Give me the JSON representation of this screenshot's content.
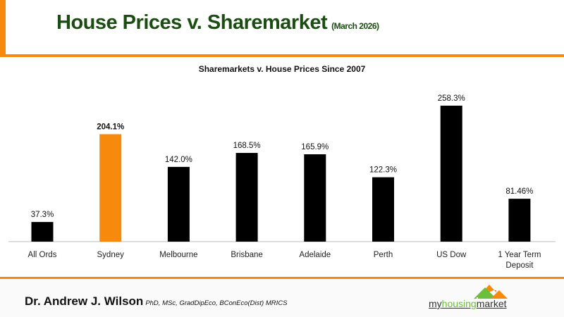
{
  "header": {
    "title": "House Prices v. Sharemarket",
    "subtitle": "(March 2026)"
  },
  "footer": {
    "author": "Dr. Andrew J. Wilson",
    "credentials": "PhD, MSc, GradDipEco, BConEco(Dist) MRICS",
    "logo_text": "myhousingmarket"
  },
  "colors": {
    "accent": "#f7890c",
    "title": "#1b4d12",
    "bar": "#000000",
    "highlight": "#f7890c"
  },
  "chart_data": {
    "type": "bar",
    "title": "Sharemarkets v. House Prices Since 2007",
    "categories": [
      "All Ords",
      "Sydney",
      "Melbourne",
      "Brisbane",
      "Adelaide",
      "Perth",
      "US Dow",
      "1 Year Term Deposit"
    ],
    "values": [
      37.3,
      204.1,
      142.0,
      168.5,
      165.9,
      122.3,
      258.3,
      81.46
    ],
    "labels": [
      "37.3%",
      "204.1%",
      "142.0%",
      "168.5%",
      "165.9%",
      "122.3%",
      "258.3%",
      "81.46%"
    ],
    "highlight_index": 1,
    "ylim": [
      0,
      260
    ],
    "grid": false,
    "xlabel": "",
    "ylabel": ""
  }
}
